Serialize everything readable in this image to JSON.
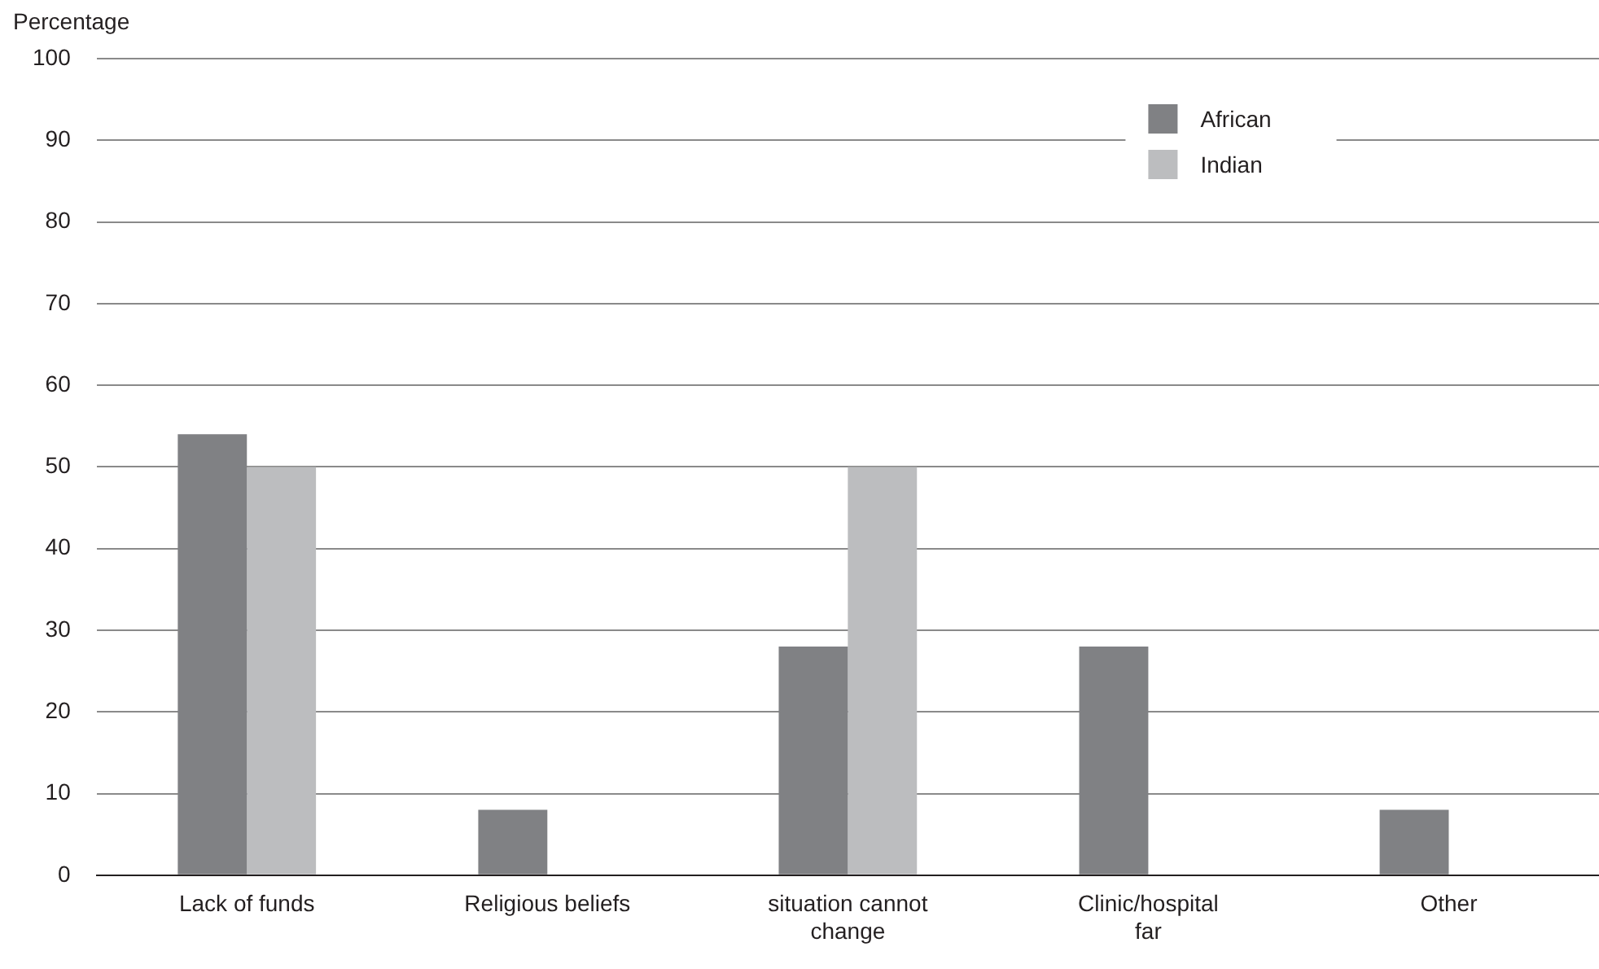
{
  "chart_data": {
    "type": "bar",
    "ylabel": "Percentage",
    "categories": [
      "Lack of funds",
      "Religious beliefs",
      "situation cannot change",
      "Clinic/hospital far",
      "Other"
    ],
    "series": [
      {
        "name": "African",
        "color": "#808184",
        "values": [
          54,
          8,
          28,
          28,
          8
        ]
      },
      {
        "name": "Indian",
        "color": "#bcbdbf",
        "values": [
          50,
          null,
          50,
          null,
          null
        ]
      }
    ],
    "ylim": [
      0,
      100
    ],
    "yticks": [
      0,
      10,
      20,
      30,
      40,
      50,
      60,
      70,
      80,
      90,
      100
    ],
    "grid": "y",
    "legend": "top right"
  }
}
